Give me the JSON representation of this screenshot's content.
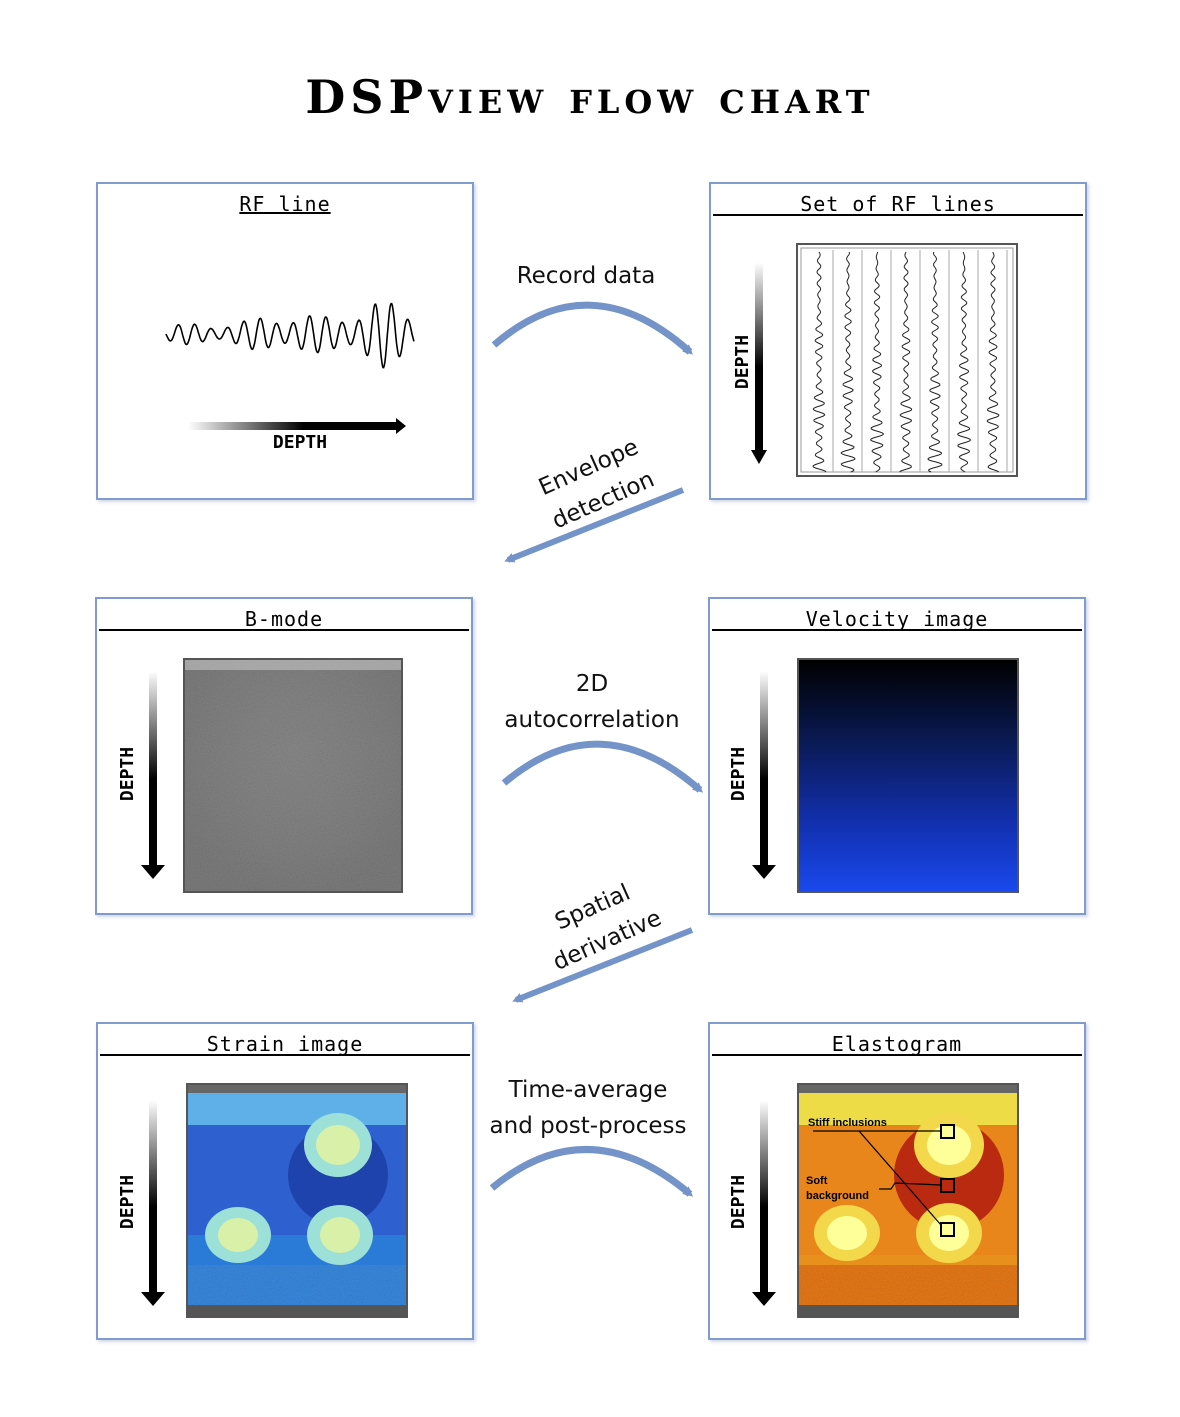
{
  "title": "DSPview flow chart",
  "panels": {
    "rf_line": {
      "title": "RF line",
      "axis": "DEPTH"
    },
    "set_rf": {
      "title": "Set of RF lines",
      "axis": "DEPTH"
    },
    "bmode": {
      "title": "B-mode",
      "axis": "DEPTH"
    },
    "velocity": {
      "title": "Velocity image",
      "axis": "DEPTH"
    },
    "strain": {
      "title": "Strain image",
      "axis": "DEPTH"
    },
    "elasto": {
      "title": "Elastogram",
      "axis": "DEPTH",
      "annot_stiff": "Stiff inclusions",
      "annot_soft_1": "Soft",
      "annot_soft_2": "background"
    }
  },
  "steps": {
    "record": "Record data",
    "envelope_1": "Envelope",
    "envelope_2": "detection",
    "autocorr_1": "2D",
    "autocorr_2": "autocorrelation",
    "spatial_1": "Spatial",
    "spatial_2": "derivative",
    "timeavg_1": "Time-average",
    "timeavg_2": "and post-process"
  },
  "colors": {
    "panel_border": "#7f9bd0",
    "arrow": "#7393c9"
  }
}
